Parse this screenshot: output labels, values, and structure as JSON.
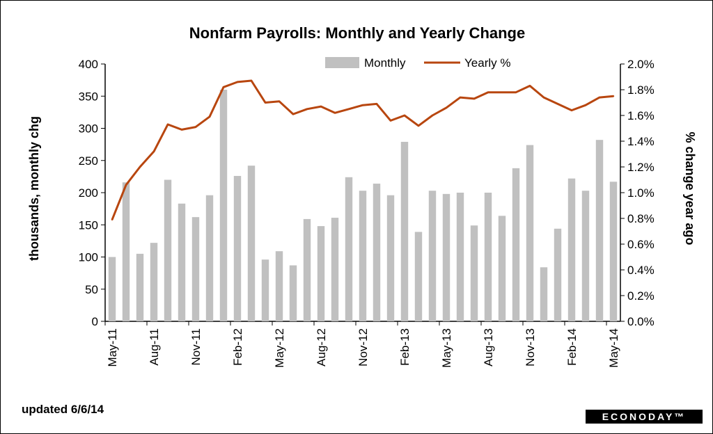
{
  "footer": {
    "updated": "updated 6/6/14",
    "logo": "ECONODAY™"
  },
  "colors": {
    "bar": "#c0c0c0",
    "line": "#b8460f"
  },
  "chart_data": {
    "type": "bar",
    "title": "Nonfarm Payrolls: Monthly and Yearly Change",
    "ylabel_left": "thousands, monthly chg",
    "ylabel_right": "% change year ago",
    "ylim_left": [
      0,
      400
    ],
    "ylim_right": [
      0,
      2.0
    ],
    "yticks_left": [
      "0",
      "50",
      "100",
      "150",
      "200",
      "250",
      "300",
      "350",
      "400"
    ],
    "yticks_right": [
      "0.0%",
      "0.2%",
      "0.4%",
      "0.6%",
      "0.8%",
      "1.0%",
      "1.2%",
      "1.4%",
      "1.6%",
      "1.8%",
      "2.0%"
    ],
    "xtick_labels": [
      "May-11",
      "Aug-11",
      "Nov-11",
      "Feb-12",
      "May-12",
      "Aug-12",
      "Nov-12",
      "Feb-13",
      "May-13",
      "Aug-13",
      "Nov-13",
      "Feb-14",
      "May-14"
    ],
    "legend_position": "top-center",
    "categories": [
      "May-11",
      "Jun-11",
      "Jul-11",
      "Aug-11",
      "Sep-11",
      "Oct-11",
      "Nov-11",
      "Dec-11",
      "Jan-12",
      "Feb-12",
      "Mar-12",
      "Apr-12",
      "May-12",
      "Jun-12",
      "Jul-12",
      "Aug-12",
      "Sep-12",
      "Oct-12",
      "Nov-12",
      "Dec-12",
      "Jan-13",
      "Feb-13",
      "Mar-13",
      "Apr-13",
      "May-13",
      "Jun-13",
      "Jul-13",
      "Aug-13",
      "Sep-13",
      "Oct-13",
      "Nov-13",
      "Dec-13",
      "Jan-14",
      "Feb-14",
      "Mar-14",
      "Apr-14",
      "May-14"
    ],
    "series": [
      {
        "name": "Monthly",
        "type": "bar",
        "axis": "left",
        "values": [
          100,
          216,
          105,
          122,
          220,
          183,
          162,
          196,
          360,
          226,
          242,
          96,
          109,
          87,
          159,
          148,
          161,
          224,
          203,
          214,
          196,
          279,
          139,
          203,
          198,
          200,
          149,
          200,
          164,
          238,
          274,
          84,
          144,
          222,
          203,
          282,
          217
        ]
      },
      {
        "name": "Yearly %",
        "type": "line",
        "axis": "right",
        "values": [
          0.79,
          1.06,
          1.2,
          1.32,
          1.53,
          1.49,
          1.51,
          1.59,
          1.82,
          1.86,
          1.87,
          1.7,
          1.71,
          1.61,
          1.65,
          1.67,
          1.62,
          1.65,
          1.68,
          1.69,
          1.56,
          1.6,
          1.52,
          1.6,
          1.66,
          1.74,
          1.73,
          1.78,
          1.78,
          1.78,
          1.83,
          1.74,
          1.69,
          1.64,
          1.68,
          1.74,
          1.75
        ]
      }
    ]
  }
}
